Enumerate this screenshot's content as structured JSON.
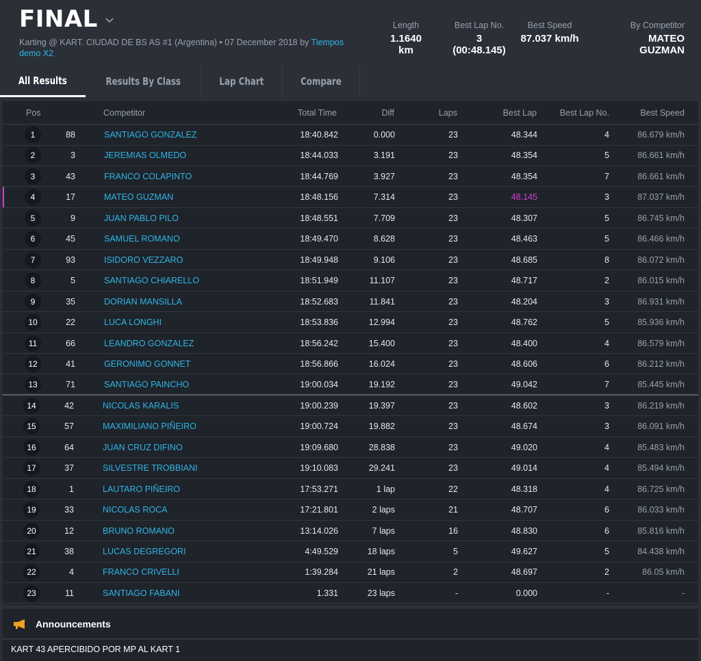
{
  "header": {
    "title": "FINAL",
    "subtitle_prefix": "Karting @ KART. CIUDAD DE BS AS #1 (Argentina) • 07 December 2018 by",
    "subtitle_link": "Tiempos demo X2",
    "stats": [
      {
        "label": "Length",
        "value": "1.1640 km"
      },
      {
        "label": "Best Lap No.",
        "value": "3 (00:48.145)"
      },
      {
        "label": "Best Speed",
        "value": "87.037 km/h"
      },
      {
        "label": "By Competitor",
        "value": "MATEO GUZMAN"
      }
    ]
  },
  "tabs": [
    {
      "label": "All Results",
      "active": true
    },
    {
      "label": "Results By Class",
      "active": false
    },
    {
      "label": "Lap Chart",
      "active": false
    },
    {
      "label": "Compare",
      "active": false
    }
  ],
  "table": {
    "columns": {
      "pos": "Pos",
      "competitor": "Competitor",
      "total_time": "Total Time",
      "diff": "Diff",
      "laps": "Laps",
      "best_lap": "Best Lap",
      "best_lap_no": "Best Lap No.",
      "best_speed": "Best Speed"
    },
    "rows": [
      {
        "pos": "1",
        "num": "88",
        "name": "SANTIAGO GONZALEZ",
        "total": "18:40.842",
        "diff": "0.000",
        "laps": "23",
        "best": "48.344",
        "best_no": "4",
        "speed": "86.679 km/h"
      },
      {
        "pos": "2",
        "num": "3",
        "name": "JEREMIAS OLMEDO",
        "total": "18:44.033",
        "diff": "3.191",
        "laps": "23",
        "best": "48.354",
        "best_no": "5",
        "speed": "86.661 km/h"
      },
      {
        "pos": "3",
        "num": "43",
        "name": "FRANCO COLAPINTO",
        "total": "18:44.769",
        "diff": "3.927",
        "laps": "23",
        "best": "48.354",
        "best_no": "7",
        "speed": "86.661 km/h"
      },
      {
        "pos": "4",
        "num": "17",
        "name": "MATEO GUZMAN",
        "total": "18:48.156",
        "diff": "7.314",
        "laps": "23",
        "best": "48.145",
        "best_no": "3",
        "speed": "87.037 km/h",
        "highlight": true
      },
      {
        "pos": "5",
        "num": "9",
        "name": "JUAN PABLO PILO",
        "total": "18:48.551",
        "diff": "7.709",
        "laps": "23",
        "best": "48.307",
        "best_no": "5",
        "speed": "86.745 km/h"
      },
      {
        "pos": "6",
        "num": "45",
        "name": "SAMUEL ROMANO",
        "total": "18:49.470",
        "diff": "8.628",
        "laps": "23",
        "best": "48.463",
        "best_no": "5",
        "speed": "86.466 km/h"
      },
      {
        "pos": "7",
        "num": "93",
        "name": "ISIDORO VEZZARO",
        "total": "18:49.948",
        "diff": "9.106",
        "laps": "23",
        "best": "48.685",
        "best_no": "8",
        "speed": "86.072 km/h"
      },
      {
        "pos": "8",
        "num": "5",
        "name": "SANTIAGO CHIARELLO",
        "total": "18:51.949",
        "diff": "11.107",
        "laps": "23",
        "best": "48.717",
        "best_no": "2",
        "speed": "86.015 km/h"
      },
      {
        "pos": "9",
        "num": "35",
        "name": "DORIAN MANSILLA",
        "total": "18:52.683",
        "diff": "11.841",
        "laps": "23",
        "best": "48.204",
        "best_no": "3",
        "speed": "86.931 km/h"
      },
      {
        "pos": "10",
        "num": "22",
        "name": "LUCA LONGHI",
        "total": "18:53.836",
        "diff": "12.994",
        "laps": "23",
        "best": "48.762",
        "best_no": "5",
        "speed": "85.936 km/h"
      },
      {
        "pos": "11",
        "num": "66",
        "name": "LEANDRO GONZALEZ",
        "total": "18:56.242",
        "diff": "15.400",
        "laps": "23",
        "best": "48.400",
        "best_no": "4",
        "speed": "86.579 km/h"
      },
      {
        "pos": "12",
        "num": "41",
        "name": "GERONIMO GONNET",
        "total": "18:56.866",
        "diff": "16.024",
        "laps": "23",
        "best": "48.606",
        "best_no": "6",
        "speed": "86.212 km/h"
      },
      {
        "pos": "13",
        "num": "71",
        "name": "SANTIAGO PAINCHO",
        "total": "19:00.034",
        "diff": "19.192",
        "laps": "23",
        "best": "49.042",
        "best_no": "7",
        "speed": "85.445 km/h"
      },
      {
        "pos": "14",
        "num": "42",
        "name": "NICOLAS KARALIS",
        "total": "19:00.239",
        "diff": "19.397",
        "laps": "23",
        "best": "48.602",
        "best_no": "3",
        "speed": "86.219 km/h"
      },
      {
        "pos": "15",
        "num": "57",
        "name": "MAXIMILIANO PIÑEIRO",
        "total": "19:00.724",
        "diff": "19.882",
        "laps": "23",
        "best": "48.674",
        "best_no": "3",
        "speed": "86.091 km/h"
      },
      {
        "pos": "16",
        "num": "64",
        "name": "JUAN CRUZ DIFINO",
        "total": "19:09.680",
        "diff": "28.838",
        "laps": "23",
        "best": "49.020",
        "best_no": "4",
        "speed": "85.483 km/h"
      },
      {
        "pos": "17",
        "num": "37",
        "name": "SILVESTRE TROBBIANI",
        "total": "19:10.083",
        "diff": "29.241",
        "laps": "23",
        "best": "49.014",
        "best_no": "4",
        "speed": "85.494 km/h"
      },
      {
        "pos": "18",
        "num": "1",
        "name": "LAUTARO PIÑEIRO",
        "total": "17:53.271",
        "diff": "1 lap",
        "laps": "22",
        "best": "48.318",
        "best_no": "4",
        "speed": "86.725 km/h"
      },
      {
        "pos": "19",
        "num": "33",
        "name": "NICOLAS ROCA",
        "total": "17:21.801",
        "diff": "2 laps",
        "laps": "21",
        "best": "48.707",
        "best_no": "6",
        "speed": "86.033 km/h"
      },
      {
        "pos": "20",
        "num": "12",
        "name": "BRUNO ROMANO",
        "total": "13:14.026",
        "diff": "7 laps",
        "laps": "16",
        "best": "48.830",
        "best_no": "6",
        "speed": "85.816 km/h"
      },
      {
        "pos": "21",
        "num": "38",
        "name": "LUCAS DEGREGORI",
        "total": "4:49.529",
        "diff": "18 laps",
        "laps": "5",
        "best": "49.627",
        "best_no": "5",
        "speed": "84.438 km/h"
      },
      {
        "pos": "22",
        "num": "4",
        "name": "FRANCO CRIVELLI",
        "total": "1:39.284",
        "diff": "21 laps",
        "laps": "2",
        "best": "48.697",
        "best_no": "2",
        "speed": "86.05 km/h"
      },
      {
        "pos": "23",
        "num": "11",
        "name": "SANTIAGO FABANI",
        "total": "1.331",
        "diff": "23 laps",
        "laps": "-",
        "best": "0.000",
        "best_no": "-",
        "speed": "-"
      }
    ]
  },
  "announcements": {
    "title": "Announcements",
    "text": "KART 43 APERCIBIDO POR MP AL KART 1"
  },
  "colors": {
    "background": "#2b2f38",
    "panel": "#1f232a",
    "link": "#2fb5e6",
    "best_highlight": "#d63fd1",
    "announce_icon": "#f0a020"
  },
  "icons": {
    "title_dropdown": "chevron-down-icon",
    "announcement": "megaphone-icon"
  }
}
